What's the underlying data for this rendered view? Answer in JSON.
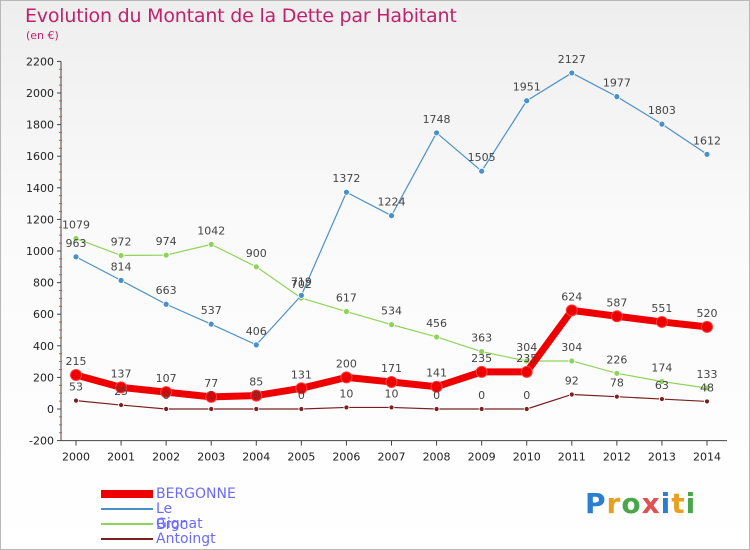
{
  "title": "Evolution du Montant de la Dette par Habitant",
  "unit": "(en €)",
  "logo": {
    "text": "Proxiti",
    "colors": [
      "#2a7fd1",
      "#e8a020",
      "#4aa64a",
      "#e05050",
      "#2a7fd1",
      "#e8a020",
      "#4aa64a"
    ]
  },
  "chart_data": {
    "type": "line",
    "title": "Evolution du Montant de la Dette par Habitant",
    "ylabel": "(en €)",
    "x": [
      "2000",
      "2001",
      "2002",
      "2003",
      "2004",
      "2005",
      "2006",
      "2007",
      "2008",
      "2009",
      "2010",
      "2011",
      "2012",
      "2013",
      "2014"
    ],
    "ylim": [
      -200,
      2200
    ],
    "yticks": [
      "-200",
      "0",
      "200",
      "400",
      "600",
      "800",
      "1000",
      "1200",
      "1400",
      "1600",
      "1800",
      "2000",
      "2200"
    ],
    "grid": false,
    "legend_position": "bottom-left",
    "series": [
      {
        "name": "BERGONNE",
        "color": "#ee0000",
        "values": [
          215,
          137,
          107,
          77,
          85,
          131,
          200,
          171,
          141,
          235,
          235,
          624,
          587,
          551,
          520
        ],
        "labels": [
          "215",
          "137",
          "107",
          "77",
          "85",
          "131",
          "200",
          "171",
          "141",
          "",
          "",
          "624",
          "587",
          "551",
          "520"
        ]
      },
      {
        "name": "Le Broc",
        "color": "#4a90c8",
        "values": [
          963,
          814,
          663,
          537,
          406,
          719,
          1372,
          1224,
          1748,
          1505,
          1951,
          2127,
          1977,
          1803,
          1612
        ],
        "labels": [
          "963",
          "814",
          "663",
          "537",
          "406",
          "719",
          "1372",
          "1224",
          "1748",
          "1505",
          "1951",
          "2127",
          "1977",
          "1803",
          "1612"
        ]
      },
      {
        "name": "Gignat",
        "color": "#8fd45a",
        "values": [
          1079,
          972,
          974,
          1042,
          900,
          702,
          617,
          534,
          456,
          363,
          304,
          304,
          226,
          174,
          133
        ],
        "labels": [
          "1079",
          "972",
          "974",
          "1042",
          "900",
          "702",
          "617",
          "534",
          "456",
          "363",
          "304",
          "304",
          "226",
          "174",
          "133"
        ]
      },
      {
        "name": "Antoingt",
        "color": "#7a2020",
        "values": [
          53,
          25,
          0,
          0,
          0,
          0,
          10,
          10,
          0,
          0,
          0,
          92,
          78,
          63,
          48
        ],
        "labels": [
          "53",
          "25",
          "0",
          "0",
          "0",
          "0",
          "10",
          "10",
          "0",
          "0",
          "0",
          "92",
          "78",
          "63",
          "48"
        ]
      }
    ],
    "overlap_labels": [
      {
        "x_index": 9,
        "text": "235"
      },
      {
        "x_index": 10,
        "text": "235"
      }
    ]
  }
}
